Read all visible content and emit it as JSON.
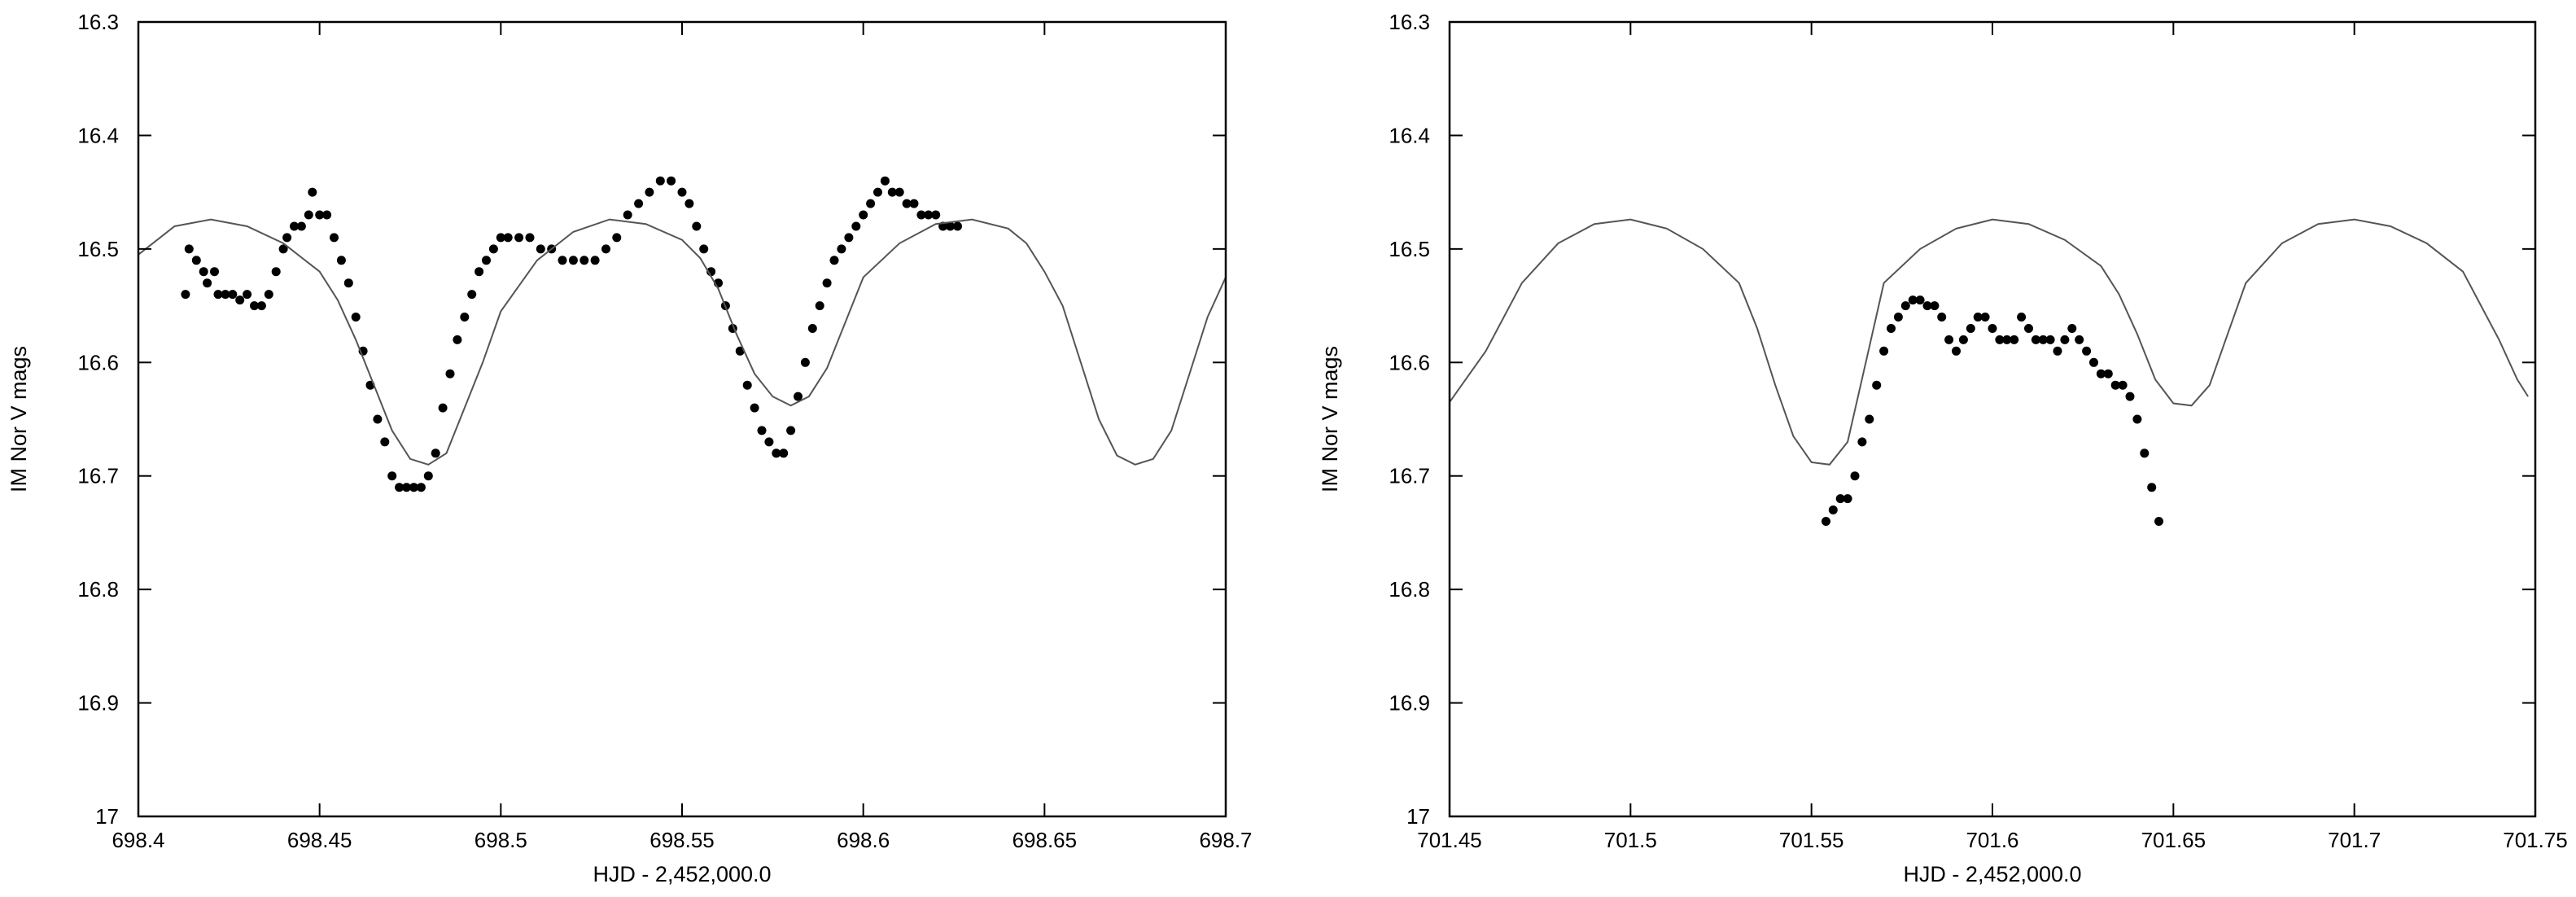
{
  "chart_data": [
    {
      "type": "scatter",
      "xlabel": "HJD - 2,452,000.0",
      "ylabel": "IM Nor V mags",
      "xlim": [
        698.4,
        698.7
      ],
      "ylim": [
        16.3,
        17
      ],
      "y_inverted": true,
      "grid": false,
      "xticks": [
        698.4,
        698.45,
        698.5,
        698.55,
        698.6,
        698.65,
        698.7
      ],
      "xtick_labels": [
        "698.4",
        "698.45",
        "698.5",
        "698.55",
        "698.6",
        "698.65",
        "698.7"
      ],
      "yticks": [
        16.3,
        16.4,
        16.5,
        16.6,
        16.7,
        16.8,
        16.9,
        17
      ],
      "ytick_labels": [
        "16.3",
        "16.4",
        "16.5",
        "16.6",
        "16.7",
        "16.8",
        "16.9",
        "17"
      ],
      "series": [
        {
          "kind": "points",
          "x": [
            698.413,
            698.414,
            698.416,
            698.418,
            698.419,
            698.421,
            698.422,
            698.424,
            698.426,
            698.428,
            698.43,
            698.432,
            698.434,
            698.436,
            698.438,
            698.44,
            698.441,
            698.443,
            698.445,
            698.447,
            698.448,
            698.45,
            698.452,
            698.454,
            698.456,
            698.458,
            698.46,
            698.462,
            698.464,
            698.466,
            698.468,
            698.47,
            698.472,
            698.474,
            698.476,
            698.478,
            698.48,
            698.482,
            698.484,
            698.486,
            698.488,
            698.49,
            698.492,
            698.494,
            698.496,
            698.498,
            698.5,
            698.502,
            698.505,
            698.508,
            698.511,
            698.514,
            698.517,
            698.52,
            698.523,
            698.526,
            698.529,
            698.532,
            698.535,
            698.538,
            698.541,
            698.544,
            698.547,
            698.55,
            698.552,
            698.554,
            698.556,
            698.558,
            698.56,
            698.562,
            698.564,
            698.566,
            698.568,
            698.57,
            698.572,
            698.574,
            698.576,
            698.578,
            698.58,
            698.582,
            698.584,
            698.586,
            698.588,
            698.59,
            698.592,
            698.594,
            698.596,
            698.598,
            698.6,
            698.602,
            698.604,
            698.606,
            698.608,
            698.61,
            698.612,
            698.614,
            698.616,
            698.618,
            698.62,
            698.622,
            698.624,
            698.626
          ],
          "y": [
            16.54,
            16.5,
            16.51,
            16.52,
            16.53,
            16.52,
            16.54,
            16.54,
            16.54,
            16.545,
            16.54,
            16.55,
            16.55,
            16.54,
            16.52,
            16.5,
            16.49,
            16.48,
            16.48,
            16.47,
            16.45,
            16.47,
            16.47,
            16.49,
            16.51,
            16.53,
            16.56,
            16.59,
            16.62,
            16.65,
            16.67,
            16.7,
            16.71,
            16.71,
            16.71,
            16.71,
            16.7,
            16.68,
            16.64,
            16.61,
            16.58,
            16.56,
            16.54,
            16.52,
            16.51,
            16.5,
            16.49,
            16.49,
            16.49,
            16.49,
            16.5,
            16.5,
            16.51,
            16.51,
            16.51,
            16.51,
            16.5,
            16.49,
            16.47,
            16.46,
            16.45,
            16.44,
            16.44,
            16.45,
            16.46,
            16.48,
            16.5,
            16.52,
            16.53,
            16.55,
            16.57,
            16.59,
            16.62,
            16.64,
            16.66,
            16.67,
            16.68,
            16.68,
            16.66,
            16.63,
            16.6,
            16.57,
            16.55,
            16.53,
            16.51,
            16.5,
            16.49,
            16.48,
            16.47,
            16.46,
            16.45,
            16.44,
            16.45,
            16.45,
            16.46,
            16.46,
            16.47,
            16.47,
            16.47,
            16.48,
            16.48,
            16.48
          ]
        },
        {
          "kind": "line",
          "x": [
            698.4,
            698.41,
            698.42,
            698.43,
            698.44,
            698.45,
            698.455,
            698.46,
            698.465,
            698.47,
            698.475,
            698.48,
            698.485,
            698.49,
            698.495,
            698.5,
            698.51,
            698.52,
            698.53,
            698.54,
            698.55,
            698.555,
            698.56,
            698.565,
            698.57,
            698.575,
            698.58,
            698.585,
            698.59,
            698.595,
            698.6,
            698.61,
            698.62,
            698.63,
            698.64,
            698.645,
            698.65,
            698.655,
            698.66,
            698.665,
            698.67,
            698.675,
            698.68,
            698.685,
            698.69,
            698.695,
            698.7
          ],
          "y": [
            16.505,
            16.48,
            16.474,
            16.48,
            16.495,
            16.52,
            16.545,
            16.58,
            16.62,
            16.66,
            16.685,
            16.69,
            16.68,
            16.64,
            16.6,
            16.555,
            16.51,
            16.485,
            16.474,
            16.478,
            16.492,
            16.508,
            16.535,
            16.575,
            16.61,
            16.63,
            16.638,
            16.63,
            16.605,
            16.565,
            16.525,
            16.495,
            16.478,
            16.474,
            16.482,
            16.495,
            16.52,
            16.55,
            16.6,
            16.65,
            16.682,
            16.69,
            16.685,
            16.66,
            16.61,
            16.56,
            16.525
          ]
        }
      ]
    },
    {
      "type": "scatter",
      "xlabel": "HJD - 2,452,000.0",
      "ylabel": "IM Nor V mags",
      "xlim": [
        701.45,
        701.75
      ],
      "ylim": [
        16.3,
        17
      ],
      "y_inverted": true,
      "grid": false,
      "xticks": [
        701.45,
        701.5,
        701.55,
        701.6,
        701.65,
        701.7,
        701.75
      ],
      "xtick_labels": [
        "701.45",
        "701.5",
        "701.55",
        "701.6",
        "701.65",
        "701.7",
        "701.75"
      ],
      "yticks": [
        16.3,
        16.4,
        16.5,
        16.6,
        16.7,
        16.8,
        16.9,
        17
      ],
      "ytick_labels": [
        "16.3",
        "16.4",
        "16.5",
        "16.6",
        "16.7",
        "16.8",
        "16.9",
        "17"
      ],
      "series": [
        {
          "kind": "points",
          "x": [
            701.554,
            701.556,
            701.558,
            701.56,
            701.562,
            701.564,
            701.566,
            701.568,
            701.57,
            701.572,
            701.574,
            701.576,
            701.578,
            701.58,
            701.582,
            701.584,
            701.586,
            701.588,
            701.59,
            701.592,
            701.594,
            701.596,
            701.598,
            701.6,
            701.602,
            701.604,
            701.606,
            701.608,
            701.61,
            701.612,
            701.614,
            701.616,
            701.618,
            701.62,
            701.622,
            701.624,
            701.626,
            701.628,
            701.63,
            701.632,
            701.634,
            701.636,
            701.638,
            701.64,
            701.642,
            701.644,
            701.646
          ],
          "y": [
            16.74,
            16.73,
            16.72,
            16.72,
            16.7,
            16.67,
            16.65,
            16.62,
            16.59,
            16.57,
            16.56,
            16.55,
            16.545,
            16.545,
            16.55,
            16.55,
            16.56,
            16.58,
            16.59,
            16.58,
            16.57,
            16.56,
            16.56,
            16.57,
            16.58,
            16.58,
            16.58,
            16.56,
            16.57,
            16.58,
            16.58,
            16.58,
            16.59,
            16.58,
            16.57,
            16.58,
            16.59,
            16.6,
            16.61,
            16.61,
            16.62,
            16.62,
            16.63,
            16.65,
            16.68,
            16.71,
            16.74
          ]
        },
        {
          "kind": "line",
          "x": [
            701.45,
            701.46,
            701.47,
            701.48,
            701.49,
            701.5,
            701.51,
            701.52,
            701.53,
            701.535,
            701.54,
            701.545,
            701.55,
            701.555,
            701.56,
            701.565,
            701.57,
            701.58,
            701.59,
            701.6,
            701.61,
            701.62,
            701.63,
            701.635,
            701.64,
            701.645,
            701.65,
            701.655,
            701.66,
            701.665,
            701.67,
            701.68,
            701.69,
            701.7,
            701.71,
            701.72,
            701.73,
            701.735,
            701.74,
            701.745,
            701.748
          ],
          "y": [
            16.635,
            16.59,
            16.53,
            16.495,
            16.478,
            16.474,
            16.482,
            16.5,
            16.53,
            16.57,
            16.62,
            16.665,
            16.688,
            16.69,
            16.67,
            16.6,
            16.53,
            16.5,
            16.482,
            16.474,
            16.478,
            16.492,
            16.515,
            16.54,
            16.575,
            16.615,
            16.636,
            16.638,
            16.62,
            16.575,
            16.53,
            16.495,
            16.478,
            16.474,
            16.48,
            16.495,
            16.52,
            16.55,
            16.58,
            16.615,
            16.63
          ]
        }
      ]
    }
  ]
}
